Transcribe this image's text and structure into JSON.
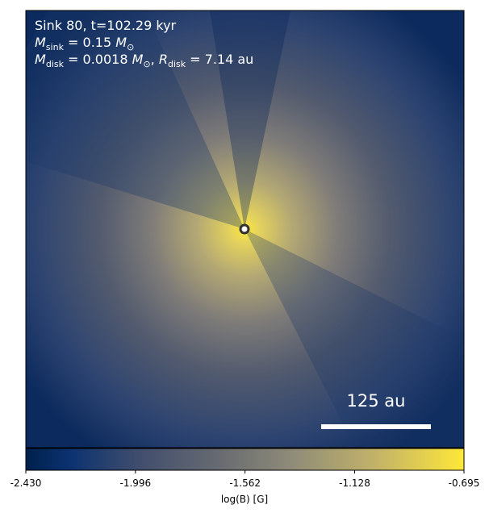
{
  "chart_data": {
    "type": "image",
    "annotation_line1": "Sink 80, t=102.29 kyr",
    "annotation_line2": [
      "M",
      "sink",
      " = 0.15 ",
      "M",
      "⊙"
    ],
    "annotation_line3": [
      "M",
      "disk",
      " = 0.0018 ",
      "M",
      "⊙",
      ", ",
      "R",
      "disk",
      " = 7.14 au"
    ],
    "scale_bar_label": "125 au",
    "colorbar_label": "log(B) [G]",
    "colormap": "cividis",
    "clim": [
      -2.43,
      -0.695
    ],
    "cticks": [
      {
        "value": -2.43,
        "label": "-2.430"
      },
      {
        "value": -1.996,
        "label": "-1.996"
      },
      {
        "value": -1.562,
        "label": "-1.562"
      },
      {
        "value": -1.128,
        "label": "-1.128"
      },
      {
        "value": -0.695,
        "label": "-0.695"
      }
    ]
  }
}
